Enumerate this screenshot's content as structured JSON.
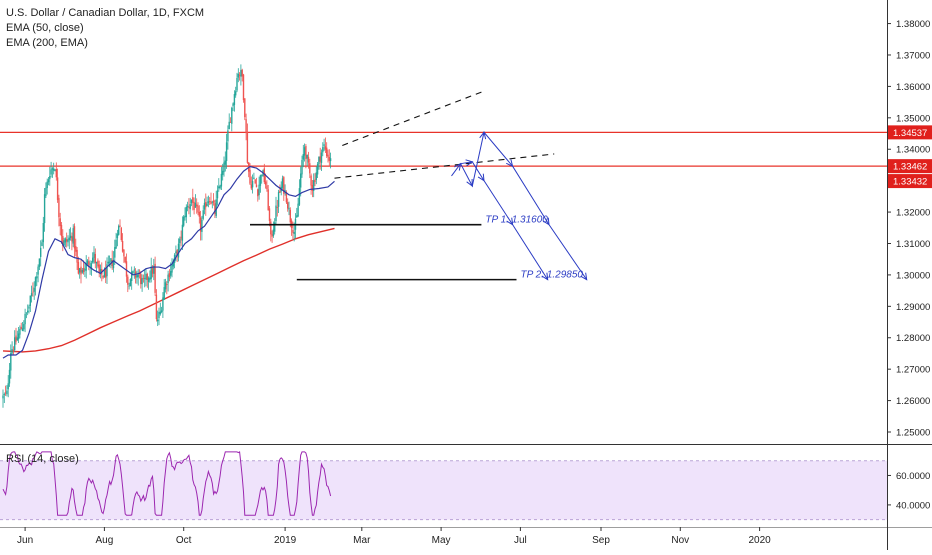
{
  "chart_data": {
    "type": "candlestick",
    "title": "U.S. Dollar / Canadian Dollar, 1D, FXCM",
    "indicators": [
      "EMA (50, close)",
      "EMA (200, EMA)"
    ],
    "price_axis": {
      "ticks": [
        1.38,
        1.37,
        1.36,
        1.35,
        1.34,
        1.33,
        1.32,
        1.31,
        1.3,
        1.29,
        1.28,
        1.27,
        1.26,
        1.25
      ],
      "tick_labels": [
        "1.38000",
        "1.37000",
        "1.36000",
        "1.35000",
        "1.34000",
        "1.33000",
        "1.32000",
        "1.31000",
        "1.30000",
        "1.29000",
        "1.28000",
        "1.27000",
        "1.26000",
        "1.25000"
      ],
      "range": [
        1.2465,
        1.3875
      ]
    },
    "time_axis": {
      "labels": [
        "Jun",
        "Aug",
        "Oct",
        "2019",
        "Mar",
        "May",
        "Jul",
        "Sep",
        "Nov",
        "2020"
      ],
      "tick_days": [
        17,
        78,
        139,
        217,
        276,
        337,
        398,
        460,
        521,
        582
      ]
    },
    "price_labels": [
      {
        "text": "1.34537",
        "value": 1.34537,
        "color": "#e0201c"
      },
      {
        "text": "1.33462",
        "value": 1.33462,
        "color": "#e0201c"
      },
      {
        "text": "1.33432",
        "value": 1.33432,
        "color": "#e0201c"
      }
    ],
    "horizontal_levels": [
      {
        "value": 1.34537,
        "color": "#e8332a"
      },
      {
        "value": 1.33462,
        "color": "#e8332a"
      }
    ],
    "targets": [
      {
        "label": "TP 1: 1.31600",
        "value": 1.316,
        "day_start": 190,
        "day_end": 368
      },
      {
        "label": "TP 2: 1.29850",
        "value": 1.2985,
        "day_start": 226,
        "day_end": 395
      }
    ],
    "rsi": {
      "label": "RSI (14, close)",
      "ticks": [
        60,
        40
      ],
      "tick_labels": [
        "60.0000",
        "40.0000"
      ],
      "band": [
        30,
        70
      ],
      "range": [
        25,
        80
      ]
    },
    "colors": {
      "up": "#26a69a",
      "down": "#ef5350",
      "ema50": "#2f3aa6",
      "ema200": "#e0302a",
      "projection": "#2b3cc4",
      "rsi": "#9c27b0",
      "rsi_band": "#efe3fb"
    },
    "ema50": [
      [
        0,
        1.2735
      ],
      [
        4,
        1.2745
      ],
      [
        10,
        1.2745
      ],
      [
        15,
        1.276
      ],
      [
        20,
        1.2815
      ],
      [
        25,
        1.2885
      ],
      [
        30,
        1.2985
      ],
      [
        35,
        1.3075
      ],
      [
        40,
        1.3115
      ],
      [
        45,
        1.3105
      ],
      [
        50,
        1.3065
      ],
      [
        55,
        1.3055
      ],
      [
        60,
        1.305
      ],
      [
        65,
        1.303
      ],
      [
        70,
        1.3015
      ],
      [
        75,
        1.3005
      ],
      [
        80,
        1.3025
      ],
      [
        85,
        1.3045
      ],
      [
        90,
        1.303
      ],
      [
        95,
        1.3015
      ],
      [
        100,
        1.3
      ],
      [
        105,
        1.3005
      ],
      [
        110,
        1.302
      ],
      [
        115,
        1.3025
      ],
      [
        120,
        1.3025
      ],
      [
        125,
        1.302
      ],
      [
        130,
        1.3035
      ],
      [
        135,
        1.307
      ],
      [
        140,
        1.31
      ],
      [
        145,
        1.3115
      ],
      [
        150,
        1.314
      ],
      [
        155,
        1.3155
      ],
      [
        160,
        1.3185
      ],
      [
        165,
        1.3215
      ],
      [
        170,
        1.3255
      ],
      [
        175,
        1.3275
      ],
      [
        180,
        1.3305
      ],
      [
        185,
        1.333
      ],
      [
        190,
        1.3345
      ],
      [
        195,
        1.334
      ],
      [
        200,
        1.3325
      ],
      [
        205,
        1.3305
      ],
      [
        210,
        1.3285
      ],
      [
        215,
        1.327
      ],
      [
        220,
        1.3255
      ],
      [
        225,
        1.325
      ],
      [
        230,
        1.3262
      ],
      [
        236,
        1.3272
      ],
      [
        243,
        1.3275
      ],
      [
        250,
        1.328
      ],
      [
        255,
        1.3298
      ]
    ],
    "ema200": [
      [
        0,
        1.2758
      ],
      [
        15,
        1.2755
      ],
      [
        25,
        1.2758
      ],
      [
        35,
        1.2765
      ],
      [
        45,
        1.2775
      ],
      [
        55,
        1.2792
      ],
      [
        65,
        1.2812
      ],
      [
        75,
        1.2832
      ],
      [
        85,
        1.285
      ],
      [
        95,
        1.2868
      ],
      [
        105,
        1.2885
      ],
      [
        115,
        1.2905
      ],
      [
        125,
        1.2925
      ],
      [
        135,
        1.2945
      ],
      [
        145,
        1.2965
      ],
      [
        155,
        1.2985
      ],
      [
        165,
        1.3005
      ],
      [
        175,
        1.3025
      ],
      [
        185,
        1.3045
      ],
      [
        195,
        1.3063
      ],
      [
        205,
        1.3082
      ],
      [
        215,
        1.3098
      ],
      [
        225,
        1.3115
      ],
      [
        235,
        1.3128
      ],
      [
        245,
        1.3138
      ],
      [
        255,
        1.3148
      ]
    ],
    "anchors": [
      [
        0,
        1.261
      ],
      [
        3,
        1.262
      ],
      [
        6,
        1.276
      ],
      [
        10,
        1.279
      ],
      [
        15,
        1.284
      ],
      [
        20,
        1.29
      ],
      [
        25,
        1.299
      ],
      [
        30,
        1.31
      ],
      [
        32,
        1.325
      ],
      [
        36,
        1.333
      ],
      [
        40,
        1.335
      ],
      [
        43,
        1.32
      ],
      [
        46,
        1.31
      ],
      [
        50,
        1.311
      ],
      [
        54,
        1.313
      ],
      [
        58,
        1.3
      ],
      [
        62,
        1.302
      ],
      [
        66,
        1.304
      ],
      [
        70,
        1.306
      ],
      [
        74,
        1.3
      ],
      [
        78,
        1.3
      ],
      [
        82,
        1.303
      ],
      [
        85,
        1.305
      ],
      [
        88,
        1.315
      ],
      [
        90,
        1.315
      ],
      [
        93,
        1.306
      ],
      [
        96,
        1.298
      ],
      [
        100,
        1.3
      ],
      [
        104,
        1.3
      ],
      [
        108,
        1.297
      ],
      [
        112,
        1.3
      ],
      [
        116,
        1.302
      ],
      [
        118,
        1.285
      ],
      [
        121,
        1.288
      ],
      [
        124,
        1.296
      ],
      [
        128,
        1.301
      ],
      [
        132,
        1.305
      ],
      [
        136,
        1.31
      ],
      [
        140,
        1.32
      ],
      [
        145,
        1.324
      ],
      [
        149,
        1.32
      ],
      [
        152,
        1.315
      ],
      [
        156,
        1.323
      ],
      [
        159,
        1.325
      ],
      [
        163,
        1.32
      ],
      [
        166,
        1.328
      ],
      [
        170,
        1.334
      ],
      [
        174,
        1.348
      ],
      [
        178,
        1.358
      ],
      [
        181,
        1.365
      ],
      [
        184,
        1.363
      ],
      [
        186,
        1.352
      ],
      [
        188,
        1.337
      ],
      [
        190,
        1.329
      ],
      [
        193,
        1.33
      ],
      [
        196,
        1.327
      ],
      [
        199,
        1.333
      ],
      [
        202,
        1.329
      ],
      [
        204,
        1.322
      ],
      [
        206,
        1.311
      ],
      [
        209,
        1.318
      ],
      [
        212,
        1.325
      ],
      [
        215,
        1.329
      ],
      [
        218,
        1.325
      ],
      [
        221,
        1.318
      ],
      [
        224,
        1.314
      ],
      [
        226,
        1.318
      ],
      [
        229,
        1.332
      ],
      [
        232,
        1.341
      ],
      [
        235,
        1.334
      ],
      [
        238,
        1.328
      ],
      [
        241,
        1.333
      ],
      [
        244,
        1.338
      ],
      [
        247,
        1.341
      ],
      [
        250,
        1.338
      ],
      [
        252,
        1.336
      ]
    ]
  }
}
